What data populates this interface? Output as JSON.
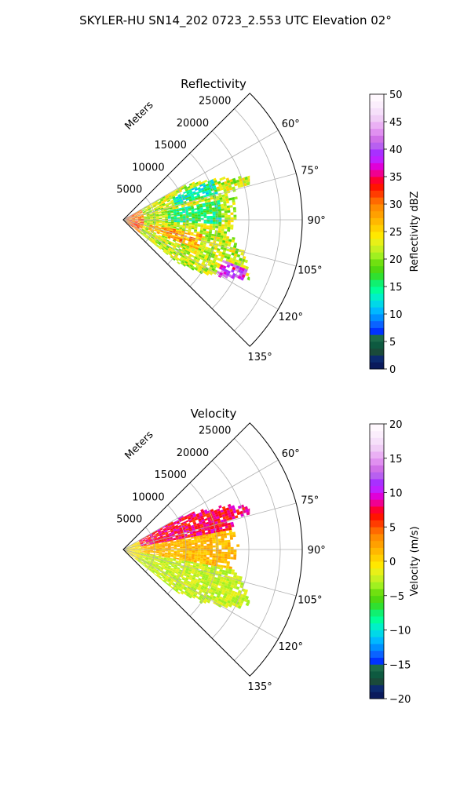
{
  "title": "SKYLER-HU  SN14_202  0723_2.553 UTC Elevation 02°",
  "chart_data": [
    {
      "type": "heatmap",
      "projection": "polar-sector",
      "title": "Reflectivity",
      "range_label": "Meters",
      "range_ticks": [
        5000,
        10000,
        15000,
        20000,
        25000
      ],
      "range_tick_labels": [
        "5000",
        "10000",
        "15000",
        "20000",
        "25000"
      ],
      "rmax": 28500,
      "azimuth_range_deg": [
        45,
        135
      ],
      "azimuth_ticks_deg": [
        60,
        75,
        90,
        105,
        120,
        135
      ],
      "azimuth_tick_labels": [
        "60°",
        "75°",
        "90°",
        "105°",
        "120°",
        "135°"
      ],
      "grid": true,
      "colorbar": {
        "label": "Reflectivity dBZ",
        "vmin": 0,
        "vmax": 50,
        "ticks": [
          0,
          5,
          10,
          15,
          20,
          25,
          30,
          35,
          40,
          45,
          50
        ],
        "tick_labels": [
          "0",
          "5",
          "10",
          "15",
          "20",
          "25",
          "30",
          "35",
          "40",
          "45",
          "50"
        ],
        "palette": [
          "#0a1a5c",
          "#0c2a6e",
          "#1a4a3a",
          "#0e5a40",
          "#1c6b4a",
          "#0033ff",
          "#0a63ff",
          "#0090ff",
          "#00b8ff",
          "#00d8e8",
          "#00f0c8",
          "#00ff99",
          "#10f070",
          "#30e030",
          "#50d810",
          "#70e010",
          "#a0f020",
          "#c8f020",
          "#e8f018",
          "#ffe800",
          "#ffd000",
          "#ffb800",
          "#ffa000",
          "#ff8c00",
          "#ff6a00",
          "#ff3c00",
          "#ff1400",
          "#ff0030",
          "#f00090",
          "#e000d8",
          "#c020ff",
          "#a830ff",
          "#b860f0",
          "#d070e8",
          "#e090f0",
          "#eab0f4",
          "#f0cdf6",
          "#f6e0fa",
          "#fbeefc",
          "#fff8fe"
        ]
      }
    },
    {
      "type": "heatmap",
      "projection": "polar-sector",
      "title": "Velocity",
      "range_label": "Meters",
      "range_ticks": [
        5000,
        10000,
        15000,
        20000,
        25000
      ],
      "range_tick_labels": [
        "5000",
        "10000",
        "15000",
        "20000",
        "25000"
      ],
      "rmax": 28500,
      "azimuth_range_deg": [
        45,
        135
      ],
      "azimuth_ticks_deg": [
        60,
        75,
        90,
        105,
        120,
        135
      ],
      "azimuth_tick_labels": [
        "60°",
        "75°",
        "90°",
        "105°",
        "120°",
        "135°"
      ],
      "grid": true,
      "colorbar": {
        "label": "Velocity (m/s)",
        "vmin": -20,
        "vmax": 20,
        "ticks": [
          -20,
          -15,
          -10,
          -5,
          0,
          5,
          10,
          15,
          20
        ],
        "tick_labels": [
          "−20",
          "−15",
          "−10",
          "−5",
          "0",
          "5",
          "10",
          "15",
          "20"
        ],
        "palette": [
          "#0a1a5c",
          "#0c2a6e",
          "#1a4a3a",
          "#0e5a40",
          "#1c6b4a",
          "#0033ff",
          "#0a63ff",
          "#0090ff",
          "#00b8ff",
          "#00d8e8",
          "#00f0c8",
          "#00ff99",
          "#10f070",
          "#30e030",
          "#50d810",
          "#70e010",
          "#a0f020",
          "#c8f020",
          "#e8f018",
          "#ffe800",
          "#ffd000",
          "#ffb800",
          "#ffa000",
          "#ff8c00",
          "#ff6a00",
          "#ff3c00",
          "#ff1400",
          "#ff0030",
          "#f00090",
          "#e000d8",
          "#c020ff",
          "#a830ff",
          "#b860f0",
          "#d070e8",
          "#e090f0",
          "#eab0f4",
          "#f0cdf6",
          "#f6e0fa",
          "#fbeefc",
          "#fff8fe"
        ]
      }
    }
  ]
}
